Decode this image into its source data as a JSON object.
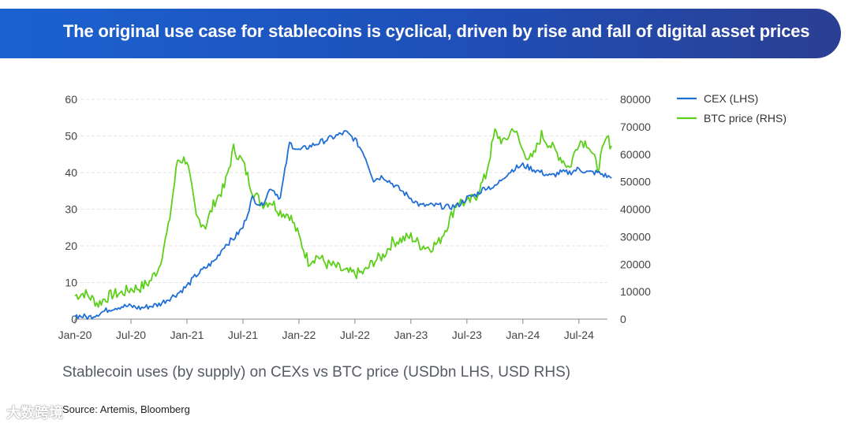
{
  "banner": {
    "title": "The original use case for stablecoins is cyclical, driven by rise and fall of digital asset prices"
  },
  "caption": "Stablecoin uses (by supply) on CEXs vs BTC price (USDbn LHS, USD RHS)",
  "source": "Source: Artemis, Bloomberg",
  "watermark": "大数跨境",
  "colors": {
    "banner": "#1f4fb8",
    "cex": "#1f6fd6",
    "btc": "#5ccf1a",
    "grid": "#e2e2e2"
  },
  "chart_data": {
    "type": "line",
    "title": "The original use case for stablecoins is cyclical, driven by rise and fall of digital asset prices",
    "xlabel": "",
    "ylabel_left": "USDbn",
    "ylabel_right": "USD",
    "ylim_left": [
      0,
      60
    ],
    "ylim_right": [
      0,
      80000
    ],
    "y_ticks_left": [
      "0",
      "10",
      "20",
      "30",
      "40",
      "50",
      "60"
    ],
    "y_ticks_right": [
      "0",
      "10000",
      "20000",
      "30000",
      "40000",
      "50000",
      "60000",
      "70000",
      "80000"
    ],
    "x_tick_labels": [
      "Jan-20",
      "Jul-20",
      "Jan-21",
      "Jul-21",
      "Jan-22",
      "Jul-22",
      "Jan-23",
      "Jul-23",
      "Jan-24",
      "Jul-24"
    ],
    "legend": [
      {
        "name": "CEX (LHS)",
        "axis": "left"
      },
      {
        "name": "BTC price (RHS)",
        "axis": "right"
      }
    ],
    "series": [
      {
        "name": "CEX (LHS)",
        "axis": "left",
        "x": [
          0,
          1.5,
          3,
          4,
          5,
          6,
          7,
          8,
          9,
          10,
          11,
          12,
          13,
          14,
          15,
          16,
          17,
          18,
          19,
          20,
          21,
          22,
          23,
          24,
          25,
          26,
          27,
          28,
          29,
          30,
          31,
          32,
          33,
          34,
          35,
          36,
          37,
          38,
          39,
          40,
          41,
          42,
          43,
          44,
          45,
          46,
          47,
          48,
          49,
          50,
          51,
          52,
          53,
          54,
          55,
          56,
          57,
          57.5
        ],
        "values": [
          1,
          0.5,
          2,
          3,
          3.5,
          3.5,
          3,
          3.5,
          4,
          5.5,
          7,
          9,
          12,
          14,
          16,
          20,
          22,
          25,
          33,
          31,
          36,
          33,
          48,
          46,
          47,
          48,
          49,
          50,
          51,
          49,
          45,
          38,
          39,
          37,
          35,
          33,
          31,
          31,
          31,
          30.5,
          31,
          33,
          34,
          36,
          36,
          39,
          41,
          42,
          41,
          40,
          39,
          40,
          40,
          41,
          40,
          40,
          39,
          38.5
        ]
      },
      {
        "name": "BTC price (RHS)",
        "axis": "right",
        "x": [
          0,
          1,
          2,
          2.5,
          3,
          4,
          5,
          6,
          7,
          8,
          9,
          10,
          11,
          12,
          13,
          14,
          15,
          16,
          17,
          18,
          19,
          20,
          21,
          22,
          23,
          24,
          25,
          26,
          27,
          28,
          29,
          30,
          31,
          32,
          33,
          34,
          35,
          36,
          37,
          38,
          39,
          40,
          41,
          42,
          43,
          44,
          45,
          46,
          47,
          48,
          49,
          50,
          51,
          52,
          53,
          54,
          55,
          56,
          57,
          57.5
        ],
        "values": [
          8500,
          9500,
          7000,
          5500,
          7000,
          9000,
          9500,
          11000,
          11500,
          13500,
          19000,
          33000,
          58000,
          58000,
          37000,
          34000,
          43000,
          48000,
          62000,
          57000,
          47000,
          42000,
          43000,
          39000,
          38000,
          30000,
          21000,
          23000,
          20000,
          19000,
          17000,
          16500,
          17000,
          21000,
          23000,
          28000,
          29000,
          30000,
          27000,
          26000,
          28000,
          35000,
          43000,
          42000,
          45000,
          52000,
          68000,
          64000,
          70000,
          61000,
          58000,
          67000,
          63000,
          59000,
          55000,
          65000,
          64000,
          55000,
          66000,
          63000
        ]
      }
    ]
  }
}
